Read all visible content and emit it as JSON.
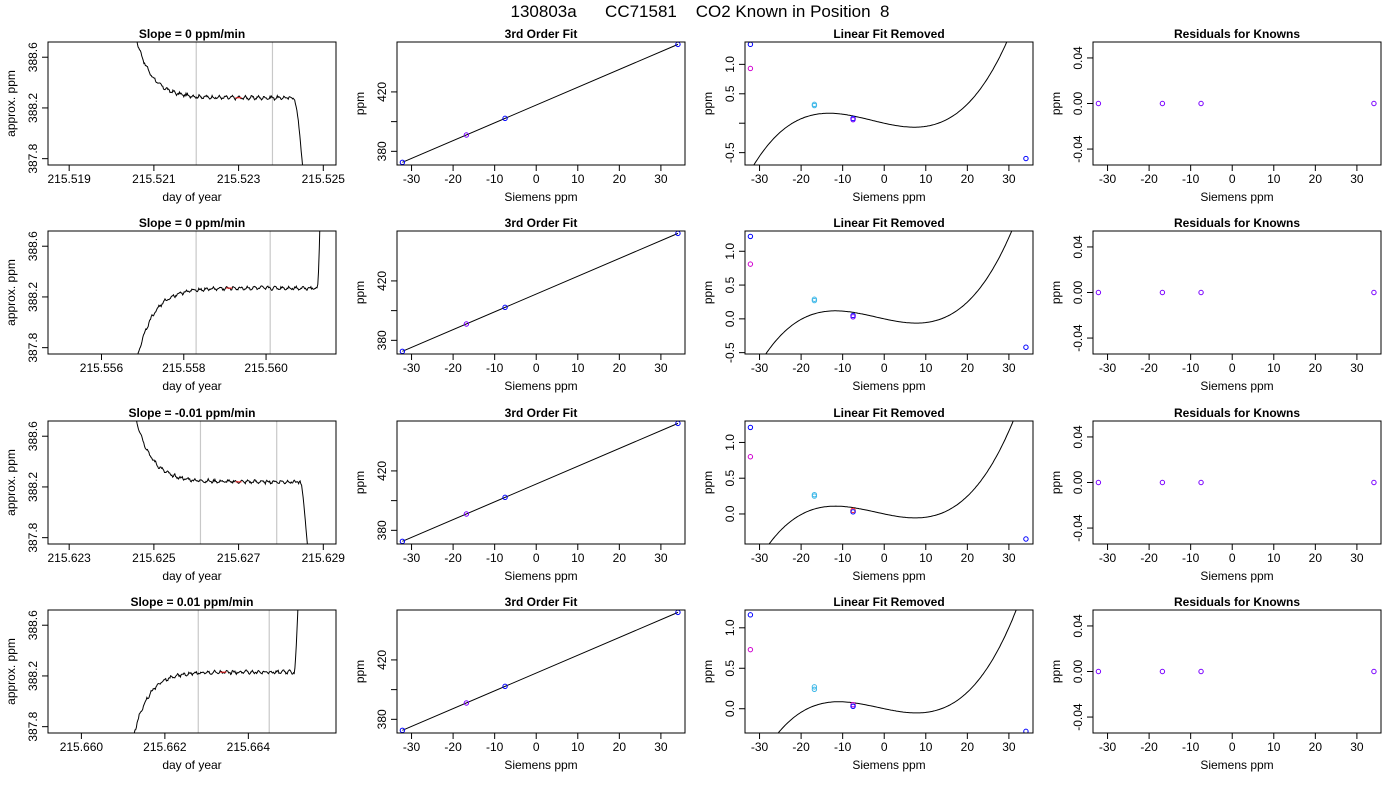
{
  "figure": {
    "title": "130803a      CC71581    CO2 Known in Position  8"
  },
  "colors": {
    "trace": "#000000",
    "gray_marker": "#bebebe",
    "blue": "#0000ff",
    "magenta": "#d000d0",
    "cyan": "#3fb8e8",
    "purple": "#7a00ff",
    "red": "#ff2020"
  },
  "chart_data": [
    {
      "row": 0,
      "col": 0,
      "type": "line",
      "title": "Slope =  0  ppm/min",
      "xlabel": "day of year",
      "ylabel": "approx. ppm",
      "xlim": [
        215.5185,
        215.5253
      ],
      "ylim": [
        387.75,
        388.72
      ],
      "xticks": [
        215.519,
        215.521,
        215.523,
        215.525
      ],
      "xtick_labels": [
        "215.519",
        "215.521",
        "215.523",
        "215.525"
      ],
      "yticks": [
        387.8,
        388.2,
        388.6
      ],
      "ytick_labels": [
        "387.8",
        "388.2",
        "388.6"
      ],
      "vlines": [
        215.522,
        215.5238
      ],
      "trace": {
        "start": 215.5202,
        "end": 215.52465,
        "approach": "down",
        "steady": 388.28,
        "edge_x": 215.5243,
        "edge_to": "down"
      },
      "mean_mark": {
        "x": 215.523,
        "y": 388.28
      }
    },
    {
      "row": 0,
      "col": 1,
      "type": "scatter",
      "title": "3rd Order Fit",
      "xlabel": "Siemens ppm",
      "ylabel": "ppm",
      "xlim": [
        -33.5,
        35.8
      ],
      "ylim": [
        370.8,
        453.6
      ],
      "xticks": [
        -30,
        -20,
        -10,
        0,
        10,
        20,
        30
      ],
      "xtick_labels": [
        "-30",
        "-20",
        "-10",
        "0",
        "10",
        "20",
        "30"
      ],
      "yticks": [
        380,
        400,
        420
      ],
      "ytick_labels": [
        "380",
        "",
        "420"
      ],
      "line": {
        "x": [
          -32.2,
          34.1
        ],
        "y": [
          372.6,
          452.0
        ]
      },
      "points": [
        {
          "x": -32.2,
          "y": 372.6,
          "color": "blue"
        },
        {
          "x": -16.8,
          "y": 391.0,
          "color": "purple"
        },
        {
          "x": -7.5,
          "y": 402.2,
          "color": "blue"
        },
        {
          "x": 34.1,
          "y": 452.0,
          "color": "blue"
        }
      ]
    },
    {
      "row": 0,
      "col": 2,
      "type": "scatter",
      "title": "Linear Fit Removed",
      "xlabel": "Siemens ppm",
      "ylabel": "ppm",
      "xlim": [
        -33.5,
        35.8
      ],
      "ylim": [
        -0.71,
        1.38
      ],
      "xticks": [
        -30,
        -20,
        -10,
        0,
        10,
        20,
        30
      ],
      "xtick_labels": [
        "-30",
        "-20",
        "-10",
        "0",
        "10",
        "20",
        "30"
      ],
      "yticks": [
        -0.5,
        0.0,
        0.5,
        1.0
      ],
      "ytick_labels": [
        "-0.5",
        "",
        "0.5",
        "1.0"
      ],
      "curve": {
        "a": 5.5e-05,
        "b": 0.0005,
        "c": -0.0158,
        "d": 0.0
      },
      "points": [
        {
          "x": -32.2,
          "y": 1.34,
          "color": "blue"
        },
        {
          "x": -32.2,
          "y": 0.93,
          "color": "magenta"
        },
        {
          "x": -16.8,
          "y": 0.3,
          "color": "cyan"
        },
        {
          "x": -16.8,
          "y": 0.32,
          "color": "cyan"
        },
        {
          "x": -7.5,
          "y": 0.08,
          "color": "blue"
        },
        {
          "x": -7.5,
          "y": 0.06,
          "color": "purple"
        },
        {
          "x": 34.1,
          "y": -0.6,
          "color": "blue"
        }
      ]
    },
    {
      "row": 0,
      "col": 3,
      "type": "scatter",
      "title": "Residuals for Knowns",
      "xlabel": "Siemens ppm",
      "ylabel": "ppm",
      "xlim": [
        -33.5,
        35.8
      ],
      "ylim": [
        -0.054,
        0.054
      ],
      "xticks": [
        -30,
        -20,
        -10,
        0,
        10,
        20,
        30
      ],
      "xtick_labels": [
        "-30",
        "-20",
        "-10",
        "0",
        "10",
        "20",
        "30"
      ],
      "yticks": [
        -0.04,
        0.0,
        0.04
      ],
      "ytick_labels": [
        "-0.04",
        "0.00",
        "0.04"
      ],
      "points": [
        {
          "x": -32.2,
          "y": 0.0,
          "color": "purple"
        },
        {
          "x": -16.8,
          "y": 0.0,
          "color": "purple"
        },
        {
          "x": -7.5,
          "y": 0.0,
          "color": "purple"
        },
        {
          "x": 34.1,
          "y": 0.0,
          "color": "purple"
        }
      ]
    },
    {
      "row": 1,
      "col": 0,
      "type": "line",
      "title": "Slope =  0  ppm/min",
      "xlabel": "day of year",
      "ylabel": "approx. ppm",
      "xlim": [
        215.5547,
        215.5617
      ],
      "ylim": [
        387.75,
        388.72
      ],
      "xticks": [
        215.556,
        215.558,
        215.56
      ],
      "xtick_labels": [
        "215.556",
        "215.558",
        "215.560"
      ],
      "yticks": [
        387.8,
        388.2,
        388.6
      ],
      "ytick_labels": [
        "387.8",
        "388.2",
        "388.6"
      ],
      "vlines": [
        215.5583,
        215.5601
      ],
      "trace": {
        "start": 215.5565,
        "end": 215.56135,
        "approach": "up",
        "steady": 388.27,
        "edge_x": 215.56125,
        "edge_to": "up"
      },
      "mean_mark": {
        "x": 215.5591,
        "y": 388.27
      }
    },
    {
      "row": 1,
      "col": 1,
      "type": "scatter",
      "title": "3rd Order Fit",
      "xlabel": "Siemens ppm",
      "ylabel": "ppm",
      "xlim": [
        -33.5,
        35.8
      ],
      "ylim": [
        370.8,
        453.6
      ],
      "xticks": [
        -30,
        -20,
        -10,
        0,
        10,
        20,
        30
      ],
      "xtick_labels": [
        "-30",
        "-20",
        "-10",
        "0",
        "10",
        "20",
        "30"
      ],
      "yticks": [
        380,
        400,
        420
      ],
      "ytick_labels": [
        "380",
        "",
        "420"
      ],
      "line": {
        "x": [
          -32.2,
          34.1
        ],
        "y": [
          372.6,
          452.0
        ]
      },
      "points": [
        {
          "x": -32.2,
          "y": 372.6,
          "color": "blue"
        },
        {
          "x": -16.8,
          "y": 391.0,
          "color": "purple"
        },
        {
          "x": -7.5,
          "y": 402.2,
          "color": "blue"
        },
        {
          "x": 34.1,
          "y": 452.0,
          "color": "blue"
        }
      ]
    },
    {
      "row": 1,
      "col": 2,
      "type": "scatter",
      "title": "Linear Fit Removed",
      "xlabel": "Siemens ppm",
      "ylabel": "ppm",
      "xlim": [
        -33.5,
        35.8
      ],
      "ylim": [
        -0.52,
        1.3
      ],
      "xticks": [
        -30,
        -20,
        -10,
        0,
        10,
        20,
        30
      ],
      "xtick_labels": [
        "-30",
        "-20",
        "-10",
        "0",
        "10",
        "20",
        "30"
      ],
      "yticks": [
        -0.5,
        0.0,
        0.5,
        1.0
      ],
      "ytick_labels": [
        "-0.5",
        "0.0",
        "0.5",
        "1.0"
      ],
      "curve": {
        "a": 4.95e-05,
        "b": 0.0003,
        "c": -0.0134,
        "d": 0.0
      },
      "points": [
        {
          "x": -32.2,
          "y": 1.22,
          "color": "blue"
        },
        {
          "x": -32.2,
          "y": 0.81,
          "color": "magenta"
        },
        {
          "x": -16.8,
          "y": 0.27,
          "color": "cyan"
        },
        {
          "x": -16.8,
          "y": 0.29,
          "color": "cyan"
        },
        {
          "x": -7.5,
          "y": 0.05,
          "color": "blue"
        },
        {
          "x": -7.5,
          "y": 0.03,
          "color": "purple"
        },
        {
          "x": 34.1,
          "y": -0.42,
          "color": "blue"
        }
      ]
    },
    {
      "row": 1,
      "col": 3,
      "type": "scatter",
      "title": "Residuals for Knowns",
      "xlabel": "Siemens ppm",
      "ylabel": "ppm",
      "xlim": [
        -33.5,
        35.8
      ],
      "ylim": [
        -0.054,
        0.054
      ],
      "xticks": [
        -30,
        -20,
        -10,
        0,
        10,
        20,
        30
      ],
      "xtick_labels": [
        "-30",
        "-20",
        "-10",
        "0",
        "10",
        "20",
        "30"
      ],
      "yticks": [
        -0.04,
        0.0,
        0.04
      ],
      "ytick_labels": [
        "-0.04",
        "0.00",
        "0.04"
      ],
      "points": [
        {
          "x": -32.2,
          "y": 0.0,
          "color": "purple"
        },
        {
          "x": -16.8,
          "y": 0.0,
          "color": "purple"
        },
        {
          "x": -7.5,
          "y": 0.0,
          "color": "purple"
        },
        {
          "x": 34.1,
          "y": 0.0,
          "color": "purple"
        }
      ]
    },
    {
      "row": 2,
      "col": 0,
      "type": "line",
      "title": "Slope =  -0.01  ppm/min",
      "xlabel": "day of year",
      "ylabel": "approx. ppm",
      "xlim": [
        215.6225,
        215.6293
      ],
      "ylim": [
        387.75,
        388.72
      ],
      "xticks": [
        215.623,
        215.625,
        215.627,
        215.629
      ],
      "xtick_labels": [
        "215.623",
        "215.625",
        "215.627",
        "215.629"
      ],
      "yticks": [
        387.8,
        388.2,
        388.6
      ],
      "ytick_labels": [
        "387.8",
        "388.2",
        "388.6"
      ],
      "vlines": [
        215.6261,
        215.6279
      ],
      "trace": {
        "start": 215.6242,
        "end": 215.62875,
        "approach": "down",
        "steady": 388.24,
        "edge_x": 215.62845,
        "edge_to": "down"
      },
      "mean_mark": {
        "x": 215.627,
        "y": 388.24
      }
    },
    {
      "row": 2,
      "col": 1,
      "type": "scatter",
      "title": "3rd Order Fit",
      "xlabel": "Siemens ppm",
      "ylabel": "ppm",
      "xlim": [
        -33.5,
        35.8
      ],
      "ylim": [
        370.8,
        453.6
      ],
      "xticks": [
        -30,
        -20,
        -10,
        0,
        10,
        20,
        30
      ],
      "xtick_labels": [
        "-30",
        "-20",
        "-10",
        "0",
        "10",
        "20",
        "30"
      ],
      "yticks": [
        380,
        400,
        420
      ],
      "ytick_labels": [
        "380",
        "",
        "420"
      ],
      "line": {
        "x": [
          -32.2,
          34.1
        ],
        "y": [
          372.6,
          452.0
        ]
      },
      "points": [
        {
          "x": -32.2,
          "y": 372.6,
          "color": "blue"
        },
        {
          "x": -16.8,
          "y": 391.0,
          "color": "purple"
        },
        {
          "x": -7.5,
          "y": 402.2,
          "color": "blue"
        },
        {
          "x": 34.1,
          "y": 452.0,
          "color": "blue"
        }
      ]
    },
    {
      "row": 2,
      "col": 2,
      "type": "scatter",
      "title": "Linear Fit Removed",
      "xlabel": "Siemens ppm",
      "ylabel": "ppm",
      "xlim": [
        -33.5,
        35.8
      ],
      "ylim": [
        -0.42,
        1.3
      ],
      "xticks": [
        -30,
        -20,
        -10,
        0,
        10,
        20,
        30
      ],
      "xtick_labels": [
        "-30",
        "-20",
        "-10",
        "0",
        "10",
        "20",
        "30"
      ],
      "yticks": [
        0.0,
        0.5,
        1.0
      ],
      "ytick_labels": [
        "0.0",
        "0.5",
        "1.0"
      ],
      "curve": {
        "a": 4.65e-05,
        "b": 0.0003,
        "c": -0.0122,
        "d": 0.0
      },
      "points": [
        {
          "x": -32.2,
          "y": 1.21,
          "color": "blue"
        },
        {
          "x": -32.2,
          "y": 0.8,
          "color": "magenta"
        },
        {
          "x": -16.8,
          "y": 0.25,
          "color": "cyan"
        },
        {
          "x": -16.8,
          "y": 0.27,
          "color": "cyan"
        },
        {
          "x": -7.5,
          "y": 0.05,
          "color": "red"
        },
        {
          "x": -7.5,
          "y": 0.03,
          "color": "blue"
        },
        {
          "x": 34.1,
          "y": -0.35,
          "color": "blue"
        }
      ]
    },
    {
      "row": 2,
      "col": 3,
      "type": "scatter",
      "title": "Residuals for Knowns",
      "xlabel": "Siemens ppm",
      "ylabel": "ppm",
      "xlim": [
        -33.5,
        35.8
      ],
      "ylim": [
        -0.054,
        0.054
      ],
      "xticks": [
        -30,
        -20,
        -10,
        0,
        10,
        20,
        30
      ],
      "xtick_labels": [
        "-30",
        "-20",
        "-10",
        "0",
        "10",
        "20",
        "30"
      ],
      "yticks": [
        -0.04,
        0.0,
        0.04
      ],
      "ytick_labels": [
        "-0.04",
        "0.00",
        "0.04"
      ],
      "points": [
        {
          "x": -32.2,
          "y": 0.0,
          "color": "purple"
        },
        {
          "x": -16.8,
          "y": 0.0,
          "color": "purple"
        },
        {
          "x": -7.5,
          "y": 0.0,
          "color": "purple"
        },
        {
          "x": 34.1,
          "y": 0.0,
          "color": "purple"
        }
      ]
    },
    {
      "row": 3,
      "col": 0,
      "type": "line",
      "title": "Slope =  0.01  ppm/min",
      "xlabel": "day of year",
      "ylabel": "approx. ppm",
      "xlim": [
        215.6592,
        215.6661
      ],
      "ylim": [
        387.75,
        388.72
      ],
      "xticks": [
        215.66,
        215.662,
        215.664
      ],
      "xtick_labels": [
        "215.660",
        "215.662",
        "215.664"
      ],
      "yticks": [
        387.8,
        388.2,
        388.6
      ],
      "ytick_labels": [
        "387.8",
        "388.2",
        "388.6"
      ],
      "vlines": [
        215.6628,
        215.6645
      ],
      "trace": {
        "start": 215.6609,
        "end": 215.66525,
        "approach": "up",
        "steady": 388.23,
        "edge_x": 215.6651,
        "edge_to": "up"
      },
      "mean_mark": {
        "x": 215.6634,
        "y": 388.23
      }
    },
    {
      "row": 3,
      "col": 1,
      "type": "scatter",
      "title": "3rd Order Fit",
      "xlabel": "Siemens ppm",
      "ylabel": "ppm",
      "xlim": [
        -33.5,
        35.8
      ],
      "ylim": [
        370.8,
        453.6
      ],
      "xticks": [
        -30,
        -20,
        -10,
        0,
        10,
        20,
        30
      ],
      "xtick_labels": [
        "-30",
        "-20",
        "-10",
        "0",
        "10",
        "20",
        "30"
      ],
      "yticks": [
        380,
        400,
        420
      ],
      "ytick_labels": [
        "380",
        "",
        "420"
      ],
      "line": {
        "x": [
          -32.2,
          34.1
        ],
        "y": [
          372.6,
          452.0
        ]
      },
      "points": [
        {
          "x": -32.2,
          "y": 372.6,
          "color": "blue"
        },
        {
          "x": -16.8,
          "y": 391.0,
          "color": "purple"
        },
        {
          "x": -7.5,
          "y": 402.2,
          "color": "blue"
        },
        {
          "x": 34.1,
          "y": 452.0,
          "color": "blue"
        }
      ]
    },
    {
      "row": 3,
      "col": 2,
      "type": "scatter",
      "title": "Linear Fit Removed",
      "xlabel": "Siemens ppm",
      "ylabel": "ppm",
      "xlim": [
        -33.5,
        35.8
      ],
      "ylim": [
        -0.3,
        1.22
      ],
      "xticks": [
        -30,
        -20,
        -10,
        0,
        10,
        20,
        30
      ],
      "xtick_labels": [
        "-30",
        "-20",
        "-10",
        "0",
        "10",
        "20",
        "30"
      ],
      "yticks": [
        0.0,
        0.5,
        1.0
      ],
      "ytick_labels": [
        "0.0",
        "0.5",
        "1.0"
      ],
      "curve": {
        "a": 4.25e-05,
        "b": 0.0002,
        "c": -0.0108,
        "d": 0.0
      },
      "points": [
        {
          "x": -32.2,
          "y": 1.16,
          "color": "blue"
        },
        {
          "x": -32.2,
          "y": 0.73,
          "color": "magenta"
        },
        {
          "x": -16.8,
          "y": 0.24,
          "color": "cyan"
        },
        {
          "x": -16.8,
          "y": 0.27,
          "color": "cyan"
        },
        {
          "x": -7.5,
          "y": 0.05,
          "color": "magenta"
        },
        {
          "x": -7.5,
          "y": 0.03,
          "color": "blue"
        },
        {
          "x": 34.1,
          "y": -0.28,
          "color": "blue"
        }
      ]
    },
    {
      "row": 3,
      "col": 3,
      "type": "scatter",
      "title": "Residuals for Knowns",
      "xlabel": "Siemens ppm",
      "ylabel": "ppm",
      "xlim": [
        -33.5,
        35.8
      ],
      "ylim": [
        -0.054,
        0.054
      ],
      "xticks": [
        -30,
        -20,
        -10,
        0,
        10,
        20,
        30
      ],
      "xtick_labels": [
        "-30",
        "-20",
        "-10",
        "0",
        "10",
        "20",
        "30"
      ],
      "yticks": [
        -0.04,
        0.0,
        0.04
      ],
      "ytick_labels": [
        "-0.04",
        "0.00",
        "0.04"
      ],
      "points": [
        {
          "x": -32.2,
          "y": 0.0,
          "color": "purple"
        },
        {
          "x": -16.8,
          "y": 0.0,
          "color": "purple"
        },
        {
          "x": -7.5,
          "y": 0.0,
          "color": "purple"
        },
        {
          "x": 34.1,
          "y": 0.0,
          "color": "purple"
        }
      ]
    }
  ]
}
